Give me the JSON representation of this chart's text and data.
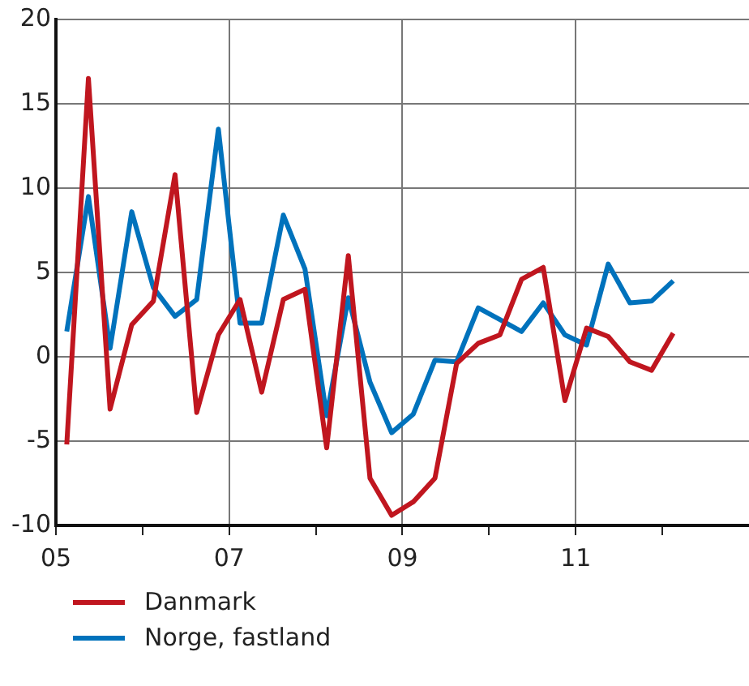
{
  "chart_data": {
    "type": "line",
    "x": [
      2005.125,
      2005.375,
      2005.625,
      2005.875,
      2006.125,
      2006.375,
      2006.625,
      2006.875,
      2007.125,
      2007.375,
      2007.625,
      2007.875,
      2008.125,
      2008.375,
      2008.625,
      2008.875,
      2009.125,
      2009.375,
      2009.625,
      2009.875,
      2010.125,
      2010.375,
      2010.625,
      2010.875,
      2011.125,
      2011.375,
      2011.625,
      2011.875,
      2012.125
    ],
    "series": [
      {
        "name": "Danmark",
        "color": "#c0161f",
        "values": [
          -5.2,
          16.5,
          -3.1,
          1.9,
          3.3,
          10.8,
          -3.3,
          1.3,
          3.4,
          -2.1,
          3.4,
          4.0,
          -5.4,
          6.0,
          -7.2,
          -9.4,
          -8.6,
          -7.2,
          -0.4,
          0.8,
          1.3,
          4.6,
          5.3,
          -2.6,
          1.7,
          1.2,
          -0.3,
          -0.8,
          1.4
        ]
      },
      {
        "name": "Norge, fastland",
        "color": "#0072bc",
        "values": [
          1.5,
          9.5,
          0.5,
          8.6,
          4.1,
          2.4,
          3.4,
          13.5,
          2.0,
          2.0,
          8.4,
          5.2,
          -3.5,
          3.5,
          -1.5,
          -4.5,
          -3.4,
          -0.2,
          -0.3,
          2.9,
          2.2,
          1.5,
          3.2,
          1.3,
          0.7,
          5.5,
          3.2,
          3.3,
          4.5
        ]
      }
    ],
    "xlim": [
      2005,
      2013
    ],
    "xticks": [
      {
        "value": 2005,
        "label": "05"
      },
      {
        "value": 2006,
        "label": null
      },
      {
        "value": 2007,
        "label": "07"
      },
      {
        "value": 2008,
        "label": null
      },
      {
        "value": 2009,
        "label": "09"
      },
      {
        "value": 2010,
        "label": null
      },
      {
        "value": 2011,
        "label": "11"
      },
      {
        "value": 2012,
        "label": null
      }
    ],
    "ylim": [
      -10,
      20
    ],
    "yticks": [
      -10,
      -5,
      0,
      5,
      10,
      15,
      20
    ],
    "grid": true,
    "legend": "bottom",
    "marker": "none",
    "line_style": "solid"
  }
}
